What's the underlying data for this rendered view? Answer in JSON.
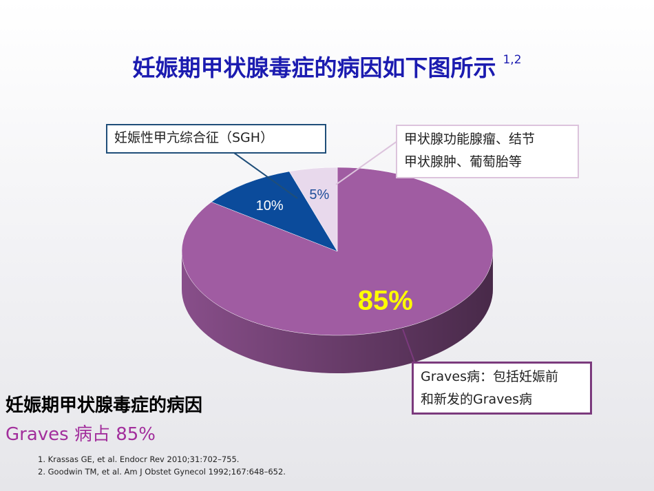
{
  "chart_data": {
    "type": "pie",
    "title": "妊娠期甲状腺毒症的病因如下图所示",
    "title_superscript": "1,2",
    "categories": [
      "Graves病：包括妊娠前\n和新发的Graves病",
      "妊娠性甲亢综合征（SGH）",
      "甲状腺功能腺瘤、结节\n甲状腺肿、葡萄胎等"
    ],
    "values": [
      85,
      10,
      5
    ],
    "value_labels": [
      "85%",
      "10%",
      "5%"
    ],
    "colors": [
      "#a05ca2",
      "#0b4b9b",
      "#e8d9ec"
    ],
    "label_colors": [
      "#ffff00",
      "#ffffff",
      "#1f4e9a"
    ]
  },
  "summary": {
    "heading": "妊娠期甲状腺毒症的病因",
    "highlight": "Graves 病占 85%"
  },
  "references": [
    "1. Krassas GE, et al. Endocr Rev 2010;31:702–755.",
    "2. Goodwin TM, et al. Am J Obstet Gynecol 1992;167:648–652."
  ]
}
